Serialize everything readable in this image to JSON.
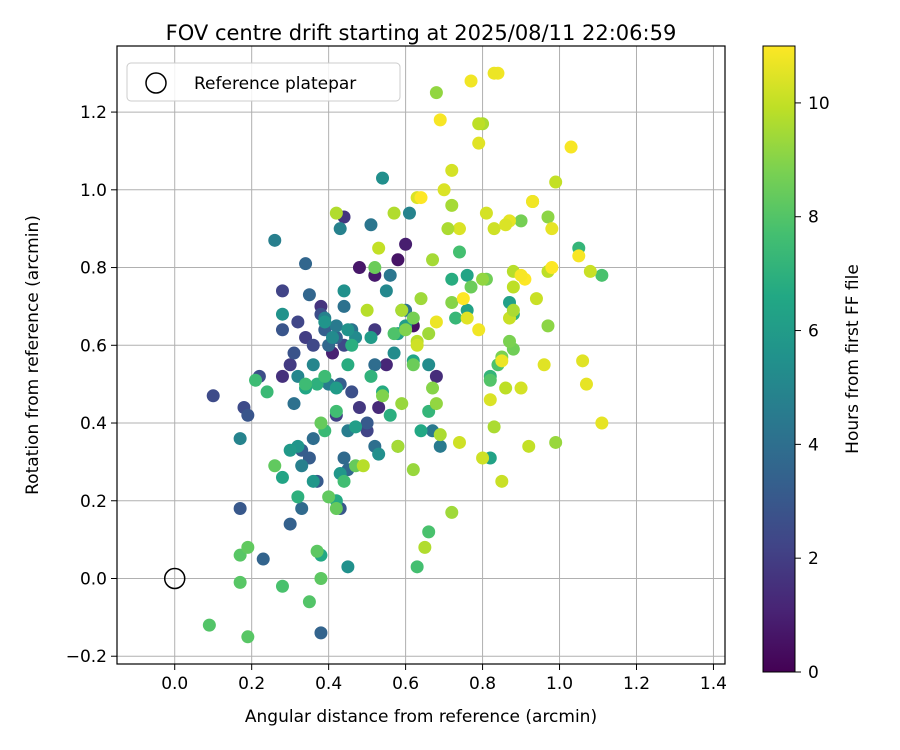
{
  "chart_data": {
    "type": "scatter",
    "title": "FOV centre drift starting at 2025/08/11 22:06:59",
    "xlabel": "Angular distance from reference (arcmin)",
    "ylabel": "Rotation from reference (arcmin)",
    "xlim": [
      -0.15,
      1.43
    ],
    "ylim": [
      -0.22,
      1.37
    ],
    "xticks": [
      "0.0",
      "0.2",
      "0.4",
      "0.6",
      "0.8",
      "1.0",
      "1.2",
      "1.4"
    ],
    "xtick_values": [
      0,
      0.2,
      0.4,
      0.6,
      0.8,
      1.0,
      1.2,
      1.4
    ],
    "yticks": [
      "−0.2",
      "0.0",
      "0.2",
      "0.4",
      "0.6",
      "0.8",
      "1.0",
      "1.2"
    ],
    "ytick_values": [
      -0.2,
      0,
      0.2,
      0.4,
      0.6,
      0.8,
      1.0,
      1.2
    ],
    "grid": true,
    "legend": {
      "label": "Reference platepar",
      "position": "top-left"
    },
    "reference_point": {
      "x": 0,
      "y": 0
    },
    "colorbar": {
      "label": "Hours from first FF file",
      "colormap": "viridis",
      "range": [
        0,
        11
      ],
      "ticks": [
        "0",
        "2",
        "4",
        "6",
        "8",
        "10"
      ],
      "tick_values": [
        0,
        2,
        4,
        6,
        8,
        10
      ]
    },
    "points": [
      [
        0.62,
        0.65,
        0.5
      ],
      [
        0.58,
        0.82,
        0.6
      ],
      [
        0.48,
        0.8,
        0.7
      ],
      [
        0.52,
        0.78,
        0.8
      ],
      [
        0.6,
        0.86,
        0.9
      ],
      [
        0.41,
        0.58,
        1.0
      ],
      [
        0.55,
        0.55,
        1.2
      ],
      [
        0.53,
        0.44,
        1.3
      ],
      [
        0.68,
        0.52,
        1.4
      ],
      [
        0.28,
        0.52,
        1.5
      ],
      [
        0.38,
        0.7,
        1.6
      ],
      [
        0.44,
        0.93,
        1.7
      ],
      [
        0.52,
        0.64,
        1.8
      ],
      [
        0.48,
        0.44,
        1.8
      ],
      [
        0.3,
        0.55,
        1.9
      ],
      [
        0.34,
        0.62,
        2.0
      ],
      [
        0.42,
        0.42,
        2.1
      ],
      [
        0.5,
        0.38,
        2.2
      ],
      [
        0.28,
        0.74,
        2.2
      ],
      [
        0.32,
        0.66,
        2.3
      ],
      [
        0.44,
        0.6,
        2.4
      ],
      [
        0.36,
        0.6,
        2.4
      ],
      [
        0.1,
        0.47,
        2.5
      ],
      [
        0.18,
        0.44,
        2.5
      ],
      [
        0.22,
        0.52,
        2.6
      ],
      [
        0.38,
        0.68,
        2.6
      ],
      [
        0.46,
        0.48,
        2.7
      ],
      [
        0.31,
        0.58,
        2.8
      ],
      [
        0.28,
        0.64,
        2.9
      ],
      [
        0.19,
        0.42,
        2.9
      ],
      [
        0.17,
        0.18,
        3.0
      ],
      [
        0.43,
        0.18,
        3.0
      ],
      [
        0.5,
        0.4,
        3.1
      ],
      [
        0.37,
        0.25,
        3.1
      ],
      [
        0.33,
        0.33,
        3.2
      ],
      [
        0.35,
        0.31,
        3.2
      ],
      [
        0.39,
        0.64,
        3.3
      ],
      [
        0.43,
        0.5,
        3.3
      ],
      [
        0.42,
        0.62,
        3.4
      ],
      [
        0.3,
        0.14,
        3.4
      ],
      [
        0.38,
        -0.14,
        3.5
      ],
      [
        0.23,
        0.05,
        3.5
      ],
      [
        0.35,
        0.73,
        3.6
      ],
      [
        0.34,
        0.81,
        3.6
      ],
      [
        0.45,
        0.28,
        3.7
      ],
      [
        0.4,
        0.6,
        3.7
      ],
      [
        0.44,
        0.31,
        3.8
      ],
      [
        0.33,
        0.18,
        3.8
      ],
      [
        0.52,
        0.55,
        3.9
      ],
      [
        0.36,
        0.36,
        3.9
      ],
      [
        0.52,
        0.34,
        4.0
      ],
      [
        0.44,
        0.7,
        4.1
      ],
      [
        0.31,
        0.45,
        4.1
      ],
      [
        0.46,
        0.64,
        4.2
      ],
      [
        0.6,
        0.69,
        4.2
      ],
      [
        0.56,
        0.78,
        4.3
      ],
      [
        0.51,
        0.91,
        4.3
      ],
      [
        0.67,
        0.38,
        4.4
      ],
      [
        0.69,
        0.34,
        4.5
      ],
      [
        0.42,
        0.65,
        4.5
      ],
      [
        0.45,
        0.38,
        4.6
      ],
      [
        0.4,
        0.5,
        4.6
      ],
      [
        0.33,
        0.29,
        4.7
      ],
      [
        0.26,
        0.87,
        4.7
      ],
      [
        0.43,
        0.9,
        4.8
      ],
      [
        0.39,
        0.67,
        4.8
      ],
      [
        0.61,
        0.94,
        4.9
      ],
      [
        0.17,
        0.36,
        4.9
      ],
      [
        0.32,
        0.52,
        5.0
      ],
      [
        0.36,
        0.55,
        5.0
      ],
      [
        0.55,
        0.74,
        5.1
      ],
      [
        0.41,
        0.62,
        5.2
      ],
      [
        0.47,
        0.62,
        5.2
      ],
      [
        0.57,
        0.58,
        5.3
      ],
      [
        0.66,
        0.55,
        5.3
      ],
      [
        0.54,
        1.03,
        5.4
      ],
      [
        0.53,
        0.32,
        5.4
      ],
      [
        0.44,
        0.74,
        5.5
      ],
      [
        0.45,
        0.03,
        5.5
      ],
      [
        0.45,
        0.64,
        5.6
      ],
      [
        0.28,
        0.68,
        5.6
      ],
      [
        0.32,
        0.34,
        5.7
      ],
      [
        0.39,
        0.66,
        5.7
      ],
      [
        0.36,
        0.25,
        5.8
      ],
      [
        0.43,
        0.27,
        5.8
      ],
      [
        0.3,
        0.33,
        5.9
      ],
      [
        0.51,
        0.62,
        6.0
      ],
      [
        0.42,
        0.49,
        6.0
      ],
      [
        0.6,
        0.65,
        6.1
      ],
      [
        0.47,
        0.39,
        6.1
      ],
      [
        0.58,
        0.63,
        6.2
      ],
      [
        0.87,
        0.71,
        6.2
      ],
      [
        0.76,
        0.69,
        6.3
      ],
      [
        0.82,
        0.31,
        6.3
      ],
      [
        0.76,
        0.78,
        6.4
      ],
      [
        0.28,
        0.26,
        6.4
      ],
      [
        0.34,
        0.49,
        6.5
      ],
      [
        0.62,
        0.56,
        6.5
      ],
      [
        0.38,
        0.06,
        6.6
      ],
      [
        0.64,
        0.38,
        6.6
      ],
      [
        0.42,
        0.2,
        6.7
      ],
      [
        0.54,
        0.48,
        6.7
      ],
      [
        0.45,
        0.55,
        6.8
      ],
      [
        0.72,
        0.77,
        6.8
      ],
      [
        0.56,
        0.42,
        6.9
      ],
      [
        0.46,
        0.6,
        6.9
      ],
      [
        0.32,
        0.21,
        7.0
      ],
      [
        0.37,
        0.5,
        7.0
      ],
      [
        0.51,
        0.52,
        7.1
      ],
      [
        0.88,
        0.68,
        7.1
      ],
      [
        0.66,
        0.43,
        7.2
      ],
      [
        0.82,
        0.52,
        7.2
      ],
      [
        1.05,
        0.85,
        7.2
      ],
      [
        0.59,
        0.69,
        7.3
      ],
      [
        0.73,
        0.67,
        7.3
      ],
      [
        0.24,
        0.48,
        7.4
      ],
      [
        0.39,
        0.38,
        7.4
      ],
      [
        0.21,
        0.51,
        7.5
      ],
      [
        0.34,
        0.5,
        7.5
      ],
      [
        0.39,
        0.52,
        7.5
      ],
      [
        0.42,
        0.43,
        7.6
      ],
      [
        0.44,
        0.25,
        7.6
      ],
      [
        0.58,
        0.34,
        7.7
      ],
      [
        0.74,
        0.84,
        7.7
      ],
      [
        0.63,
        0.03,
        7.7
      ],
      [
        0.28,
        -0.02,
        7.8
      ],
      [
        0.66,
        0.12,
        7.8
      ],
      [
        1.11,
        0.78,
        7.8
      ],
      [
        0.84,
        0.55,
        7.9
      ],
      [
        0.57,
        0.63,
        7.9
      ],
      [
        0.82,
        0.51,
        8.0
      ],
      [
        0.35,
        -0.06,
        8.0
      ],
      [
        0.09,
        -0.12,
        8.0
      ],
      [
        0.19,
        -0.15,
        8.1
      ],
      [
        0.17,
        0.06,
        8.1
      ],
      [
        0.17,
        -0.01,
        8.1
      ],
      [
        0.38,
        0.0,
        8.2
      ],
      [
        0.37,
        0.07,
        8.2
      ],
      [
        0.19,
        0.08,
        8.3
      ],
      [
        0.26,
        0.29,
        8.3
      ],
      [
        0.4,
        0.21,
        8.3
      ],
      [
        0.42,
        0.18,
        8.4
      ],
      [
        0.47,
        0.29,
        8.4
      ],
      [
        0.38,
        0.4,
        8.4
      ],
      [
        0.52,
        0.8,
        8.5
      ],
      [
        0.62,
        0.55,
        8.5
      ],
      [
        0.77,
        0.75,
        8.5
      ],
      [
        0.81,
        0.77,
        8.6
      ],
      [
        0.88,
        0.59,
        8.6
      ],
      [
        0.9,
        0.92,
        8.7
      ],
      [
        0.62,
        0.67,
        8.7
      ],
      [
        0.87,
        0.61,
        8.8
      ],
      [
        0.85,
        0.57,
        8.8
      ],
      [
        0.54,
        0.47,
        8.9
      ],
      [
        0.6,
        0.64,
        8.9
      ],
      [
        0.67,
        0.49,
        9.0
      ],
      [
        0.72,
        0.71,
        9.0
      ],
      [
        0.93,
        0.97,
        9.0
      ],
      [
        0.97,
        0.93,
        9.1
      ],
      [
        0.97,
        0.65,
        9.1
      ],
      [
        0.68,
        0.45,
        9.2
      ],
      [
        0.8,
        0.77,
        9.2
      ],
      [
        0.62,
        0.28,
        9.3
      ],
      [
        0.99,
        0.35,
        9.3
      ],
      [
        0.59,
        0.45,
        9.3
      ],
      [
        0.72,
        0.17,
        9.4
      ],
      [
        0.64,
        0.72,
        9.4
      ],
      [
        0.67,
        0.82,
        9.5
      ],
      [
        0.58,
        0.34,
        9.5
      ],
      [
        0.72,
        0.96,
        9.5
      ],
      [
        0.69,
        0.37,
        9.6
      ],
      [
        0.83,
        0.39,
        9.6
      ],
      [
        0.57,
        0.94,
        9.7
      ],
      [
        0.42,
        0.94,
        9.7
      ],
      [
        0.65,
        0.08,
        9.7
      ],
      [
        0.49,
        0.29,
        9.8
      ],
      [
        0.63,
        0.61,
        9.8
      ],
      [
        0.88,
        0.79,
        9.8
      ],
      [
        0.88,
        0.75,
        9.9
      ],
      [
        0.86,
        0.49,
        9.9
      ],
      [
        0.97,
        0.79,
        9.9
      ],
      [
        0.53,
        0.85,
        10.0
      ],
      [
        0.99,
        1.02,
        10.0
      ],
      [
        0.92,
        0.34,
        10.0
      ],
      [
        0.85,
        0.25,
        10.1
      ],
      [
        0.87,
        0.67,
        10.1
      ],
      [
        0.94,
        0.72,
        10.1
      ],
      [
        0.8,
        0.31,
        10.2
      ],
      [
        0.63,
        0.6,
        10.2
      ],
      [
        0.74,
        0.35,
        10.2
      ],
      [
        0.9,
        0.49,
        10.3
      ],
      [
        0.72,
        1.05,
        10.3
      ],
      [
        0.81,
        0.94,
        10.3
      ],
      [
        0.74,
        0.9,
        10.4
      ],
      [
        0.82,
        0.46,
        10.4
      ],
      [
        0.63,
        0.98,
        10.4
      ],
      [
        0.79,
        1.12,
        10.5
      ],
      [
        0.96,
        0.55,
        10.5
      ],
      [
        1.06,
        0.56,
        10.5
      ],
      [
        1.07,
        0.5,
        10.6
      ],
      [
        0.98,
        0.9,
        10.6
      ],
      [
        1.11,
        0.4,
        10.6
      ],
      [
        0.68,
        0.66,
        10.7
      ],
      [
        0.93,
        0.97,
        10.7
      ],
      [
        0.85,
        0.56,
        10.7
      ],
      [
        0.79,
        0.64,
        10.8
      ],
      [
        0.84,
        1.3,
        10.8
      ],
      [
        0.77,
        1.28,
        10.8
      ],
      [
        0.69,
        1.18,
        10.9
      ],
      [
        1.03,
        1.11,
        10.9
      ],
      [
        1.05,
        0.83,
        10.9
      ],
      [
        0.98,
        0.8,
        11.0
      ],
      [
        0.64,
        0.98,
        11.0
      ],
      [
        0.75,
        0.72,
        11.0
      ],
      [
        0.91,
        0.77,
        11.0
      ],
      [
        0.93,
        0.97,
        10.8
      ],
      [
        0.87,
        0.92,
        10.6
      ],
      [
        0.83,
        0.9,
        10.2
      ],
      [
        0.76,
        0.67,
        10.5
      ],
      [
        0.71,
        0.9,
        9.6
      ],
      [
        0.7,
        1.0,
        10.4
      ],
      [
        0.8,
        1.17,
        9.6
      ],
      [
        0.79,
        1.17,
        9.9
      ],
      [
        0.68,
        1.25,
        9.2
      ],
      [
        0.9,
        0.78,
        10.9
      ],
      [
        0.86,
        0.91,
        10.4
      ],
      [
        0.88,
        0.69,
        9.6
      ],
      [
        0.83,
        1.3,
        10.7
      ],
      [
        1.08,
        0.79,
        10.1
      ],
      [
        0.5,
        0.69,
        9.8
      ],
      [
        0.59,
        0.69,
        9.6
      ],
      [
        0.66,
        0.63,
        9.4
      ]
    ]
  }
}
